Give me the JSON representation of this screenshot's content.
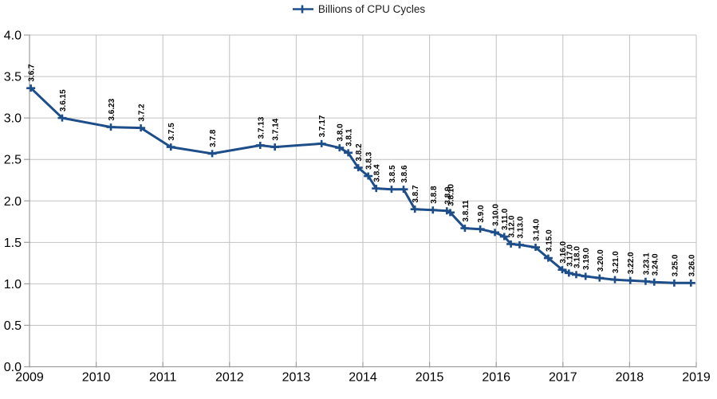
{
  "chart_data": {
    "type": "line",
    "title": "",
    "xlabel": "",
    "ylabel": "",
    "xlim": [
      2009,
      2019
    ],
    "ylim": [
      0.0,
      4.0
    ],
    "grid": true,
    "legend_position": "top-center",
    "marker": "plus",
    "point_label_rotation_deg": 90,
    "colors": {
      "line": "#1d4e89",
      "grid": "#c2c2c2",
      "axis": "#9e9e9e",
      "text": "#000000",
      "background": "#ffffff"
    },
    "x_ticks": [
      {
        "value": 2009,
        "label": "2009"
      },
      {
        "value": 2010,
        "label": "2010"
      },
      {
        "value": 2011,
        "label": "2011"
      },
      {
        "value": 2012,
        "label": "2012"
      },
      {
        "value": 2013,
        "label": "2013"
      },
      {
        "value": 2014,
        "label": "2014"
      },
      {
        "value": 2015,
        "label": "2015"
      },
      {
        "value": 2016,
        "label": "2016"
      },
      {
        "value": 2017,
        "label": "2017"
      },
      {
        "value": 2018,
        "label": "2018"
      },
      {
        "value": 2019,
        "label": "2019"
      }
    ],
    "y_ticks": [
      {
        "value": 0.0,
        "label": "0.0"
      },
      {
        "value": 0.5,
        "label": "0.5"
      },
      {
        "value": 1.0,
        "label": "1.0"
      },
      {
        "value": 1.5,
        "label": "1.5"
      },
      {
        "value": 2.0,
        "label": "2.0"
      },
      {
        "value": 2.5,
        "label": "2.5"
      },
      {
        "value": 3.0,
        "label": "3.0"
      },
      {
        "value": 3.5,
        "label": "3.5"
      },
      {
        "value": 4.0,
        "label": "4.0"
      }
    ],
    "series": [
      {
        "name": "Billions of CPU Cycles",
        "points": [
          {
            "label": "3.6.7",
            "x": 2009.02,
            "y": 3.36
          },
          {
            "label": "3.6.15",
            "x": 2009.49,
            "y": 3.0
          },
          {
            "label": "3.6.23",
            "x": 2010.22,
            "y": 2.89
          },
          {
            "label": "3.7.2",
            "x": 2010.67,
            "y": 2.88
          },
          {
            "label": "3.7.5",
            "x": 2011.12,
            "y": 2.65
          },
          {
            "label": "3.7.8",
            "x": 2011.74,
            "y": 2.57
          },
          {
            "label": "3.7.13",
            "x": 2012.46,
            "y": 2.67
          },
          {
            "label": "3.7.14",
            "x": 2012.68,
            "y": 2.65
          },
          {
            "label": "3.7.17",
            "x": 2013.38,
            "y": 2.69
          },
          {
            "label": "3.8.0",
            "x": 2013.65,
            "y": 2.64
          },
          {
            "label": "3.8.1",
            "x": 2013.78,
            "y": 2.58
          },
          {
            "label": "3.8.2",
            "x": 2013.93,
            "y": 2.4
          },
          {
            "label": "3.8.3",
            "x": 2014.08,
            "y": 2.3
          },
          {
            "label": "3.8.4",
            "x": 2014.2,
            "y": 2.15
          },
          {
            "label": "3.8.5",
            "x": 2014.43,
            "y": 2.14
          },
          {
            "label": "3.8.6",
            "x": 2014.61,
            "y": 2.14
          },
          {
            "label": "3.8.7",
            "x": 2014.78,
            "y": 1.9
          },
          {
            "label": "3.8.8",
            "x": 2015.05,
            "y": 1.89
          },
          {
            "label": "3.8.9",
            "x": 2015.26,
            "y": 1.88
          },
          {
            "label": "3.8.10",
            "x": 2015.31,
            "y": 1.86
          },
          {
            "label": "3.8.11",
            "x": 2015.53,
            "y": 1.67
          },
          {
            "label": "3.9.0",
            "x": 2015.76,
            "y": 1.66
          },
          {
            "label": "3.10.0",
            "x": 2015.98,
            "y": 1.62
          },
          {
            "label": "3.11.0",
            "x": 2016.12,
            "y": 1.57
          },
          {
            "label": "3.12.0",
            "x": 2016.22,
            "y": 1.48
          },
          {
            "label": "3.13.0",
            "x": 2016.35,
            "y": 1.47
          },
          {
            "label": "3.14.0",
            "x": 2016.59,
            "y": 1.44
          },
          {
            "label": "3.15.0",
            "x": 2016.78,
            "y": 1.31
          },
          {
            "label": "3.16.0",
            "x": 2016.99,
            "y": 1.17
          },
          {
            "label": "3.17.0",
            "x": 2017.09,
            "y": 1.13
          },
          {
            "label": "3.18.0",
            "x": 2017.2,
            "y": 1.11
          },
          {
            "label": "3.19.0",
            "x": 2017.34,
            "y": 1.09
          },
          {
            "label": "3.20.0",
            "x": 2017.55,
            "y": 1.07
          },
          {
            "label": "3.21.0",
            "x": 2017.78,
            "y": 1.05
          },
          {
            "label": "3.22.0",
            "x": 2018.01,
            "y": 1.04
          },
          {
            "label": "3.23.1",
            "x": 2018.24,
            "y": 1.03
          },
          {
            "label": "3.24.0",
            "x": 2018.37,
            "y": 1.02
          },
          {
            "label": "3.25.0",
            "x": 2018.67,
            "y": 1.01
          },
          {
            "label": "3.26.0",
            "x": 2018.92,
            "y": 1.01
          }
        ]
      }
    ]
  }
}
